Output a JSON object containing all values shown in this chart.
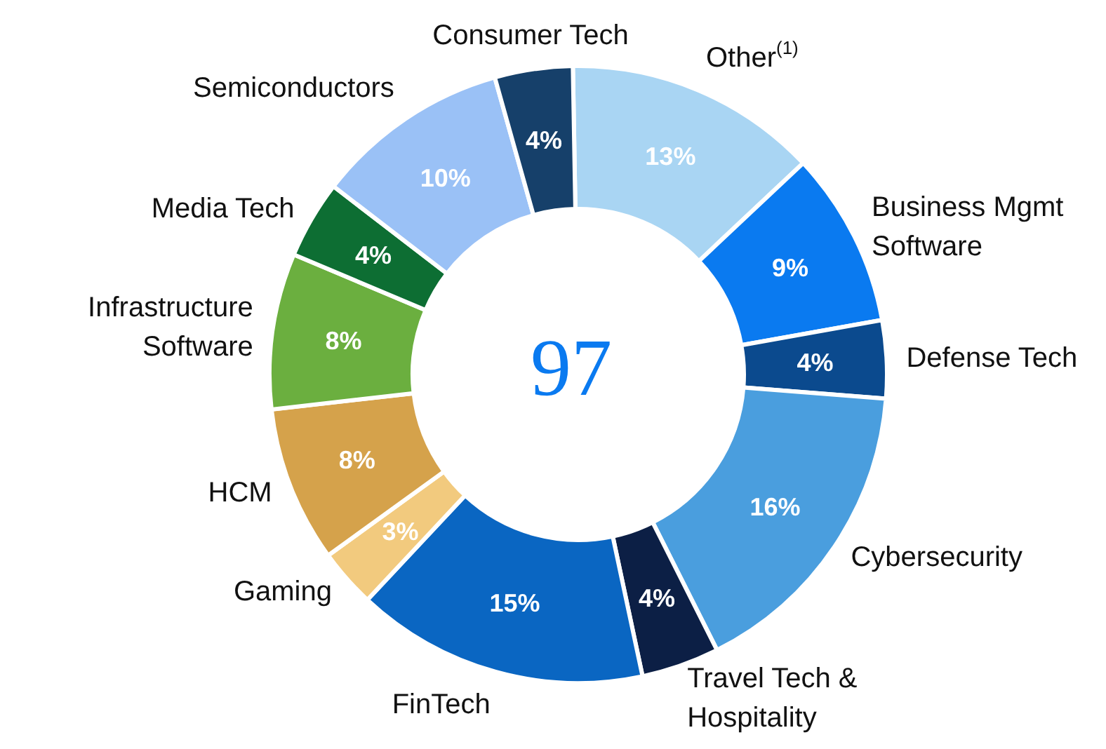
{
  "chart_data": {
    "type": "donut",
    "categories": [
      "Other$^{(1)}$",
      "Business Mgmt Software",
      "Defense Tech",
      "Cybersecurity",
      "Travel Tech & Hospitality",
      "FinTech",
      "Gaming",
      "HCM",
      "Infrastructure Software",
      "Media Tech",
      "Semiconductors",
      "Consumer Tech"
    ],
    "values": [
      13,
      9,
      4,
      16,
      4,
      15,
      3,
      8,
      8,
      4,
      10,
      4
    ],
    "value_labels": [
      "13%",
      "9%",
      "4%",
      "16%",
      "4%",
      "15%",
      "3%",
      "8%",
      "8%",
      "4%",
      "10%",
      "4%"
    ],
    "colors": [
      "#a9d5f3",
      "#0a7af0",
      "#0b4a8e",
      "#4a9ede",
      "#0c1f45",
      "#0a66c2",
      "#f2ca7e",
      "#d5a24b",
      "#6baf3f",
      "#0d6e33",
      "#9ac1f6",
      "#16406a"
    ],
    "annotations": [
      "97"
    ]
  }
}
